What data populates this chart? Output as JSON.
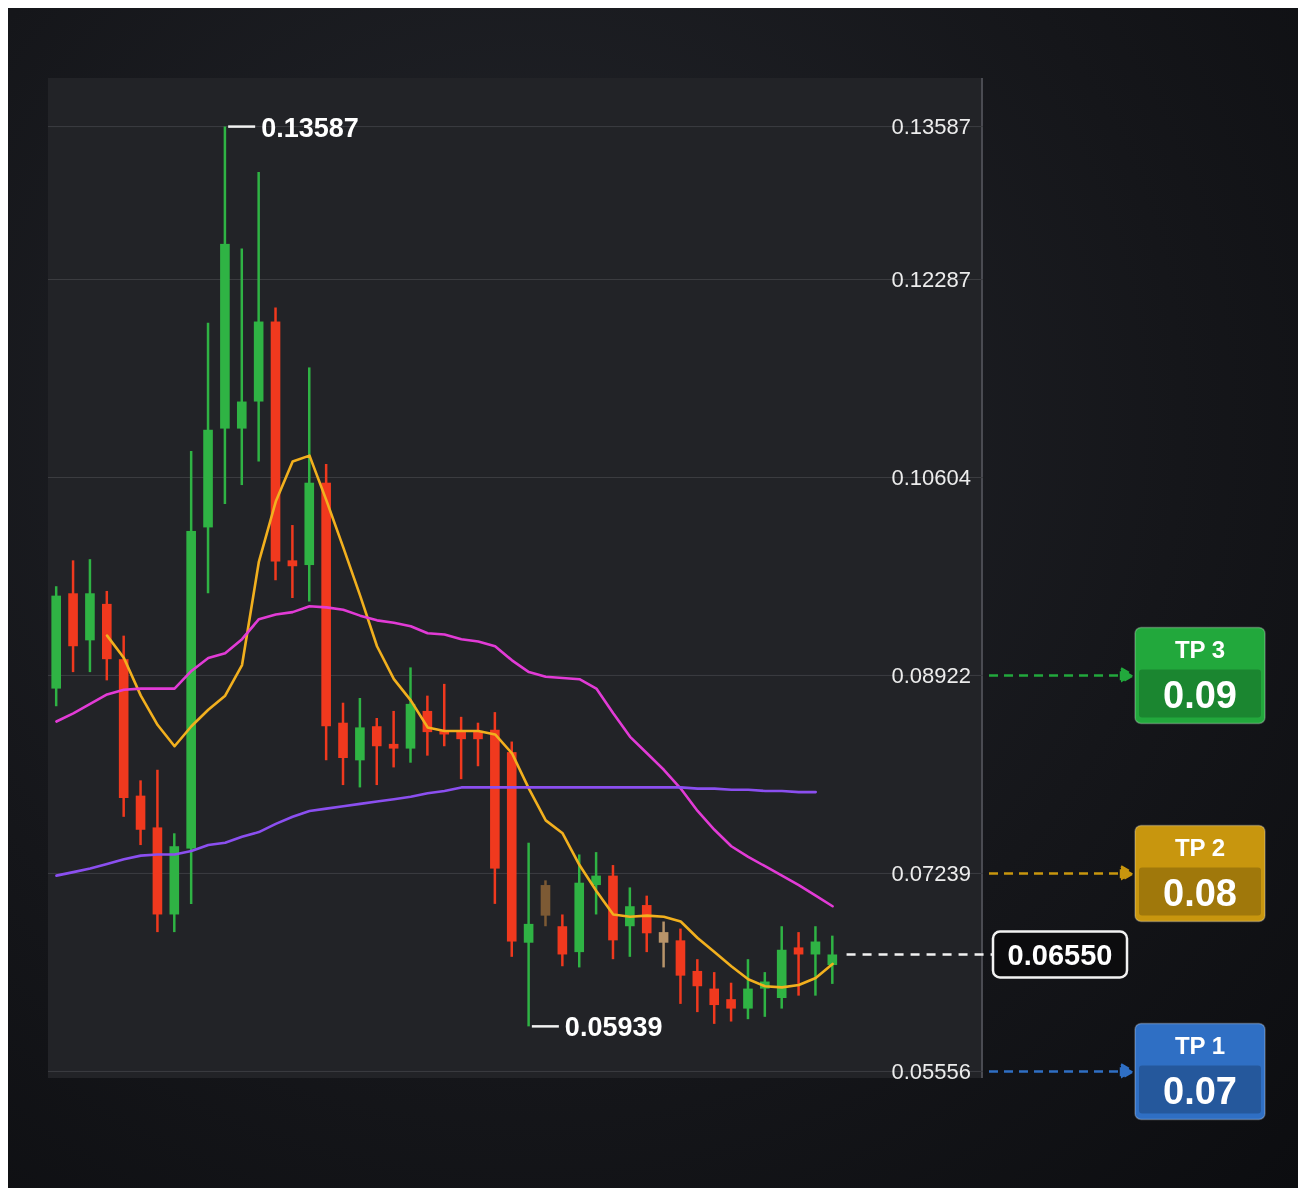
{
  "chart_data": {
    "type": "candlestick",
    "categories": [
      null,
      null,
      null,
      null,
      null,
      null,
      null,
      null,
      null,
      null,
      null,
      null,
      null,
      null,
      null,
      null,
      null,
      null,
      null,
      null,
      null,
      null,
      null,
      null,
      null,
      null,
      null,
      null,
      null,
      null,
      null,
      null,
      null,
      null,
      null,
      null,
      null,
      null,
      null,
      null,
      null,
      null,
      null,
      null,
      null,
      null,
      null
    ],
    "ohlc": [
      [
        0.0881,
        0.0968,
        0.0866,
        0.096
      ],
      [
        0.0962,
        0.099,
        0.0895,
        0.0917
      ],
      [
        0.0922,
        0.0991,
        0.0895,
        0.0962
      ],
      [
        0.0953,
        0.0964,
        0.0888,
        0.0906
      ],
      [
        0.0906,
        0.0926,
        0.0772,
        0.0788
      ],
      [
        0.079,
        0.0803,
        0.0748,
        0.0761
      ],
      [
        0.0763,
        0.0812,
        0.0674,
        0.0689
      ],
      [
        0.0689,
        0.0758,
        0.0674,
        0.0747
      ],
      [
        0.0745,
        0.1083,
        0.0698,
        0.1015
      ],
      [
        0.1018,
        0.1192,
        0.0962,
        0.1101
      ],
      [
        0.1102,
        0.13587,
        0.1038,
        0.1259
      ],
      [
        0.1102,
        0.1255,
        0.1054,
        0.1125
      ],
      [
        0.1125,
        0.132,
        0.1074,
        0.1193
      ],
      [
        0.1193,
        0.1205,
        0.0973,
        0.0989
      ],
      [
        0.099,
        0.102,
        0.0958,
        0.0985
      ],
      [
        0.0986,
        0.1154,
        0.0955,
        0.1056
      ],
      [
        0.1056,
        0.1072,
        0.082,
        0.0849
      ],
      [
        0.0852,
        0.0869,
        0.0799,
        0.0822
      ],
      [
        0.082,
        0.0873,
        0.0797,
        0.0848
      ],
      [
        0.0849,
        0.0856,
        0.0799,
        0.0832
      ],
      [
        0.0834,
        0.0862,
        0.0814,
        0.083
      ],
      [
        0.083,
        0.0899,
        0.0818,
        0.0868
      ],
      [
        0.0862,
        0.0875,
        0.0824,
        0.0844
      ],
      [
        0.0845,
        0.0885,
        0.0832,
        0.0842
      ],
      [
        0.0845,
        0.0857,
        0.0804,
        0.0838
      ],
      [
        0.0845,
        0.0852,
        0.0815,
        0.0838
      ],
      [
        0.0846,
        0.0861,
        0.0698,
        0.0728
      ],
      [
        0.0827,
        0.0836,
        0.0653,
        0.0666
      ],
      [
        0.0665,
        0.075,
        0.05939,
        0.0681
      ],
      [
        0.0714,
        0.0718,
        0.0679,
        0.0688
      ],
      [
        0.0679,
        0.0689,
        0.0645,
        0.0655
      ],
      [
        0.0657,
        0.074,
        0.0644,
        0.0716
      ],
      [
        0.0714,
        0.0742,
        0.0689,
        0.0722
      ],
      [
        0.0722,
        0.0731,
        0.0651,
        0.0667
      ],
      [
        0.0679,
        0.0712,
        0.0653,
        0.0696
      ],
      [
        0.0697,
        0.0705,
        0.0657,
        0.0673
      ],
      [
        0.0674,
        0.0683,
        0.0644,
        0.0665
      ],
      [
        0.0667,
        0.0677,
        0.0613,
        0.0637
      ],
      [
        0.0641,
        0.0651,
        0.0606,
        0.0628
      ],
      [
        0.0626,
        0.064,
        0.0596,
        0.0612
      ],
      [
        0.0617,
        0.0631,
        0.0598,
        0.0609
      ],
      [
        0.0609,
        0.0651,
        0.06,
        0.0626
      ],
      [
        0.0626,
        0.064,
        0.0602,
        0.0632
      ],
      [
        0.0618,
        0.0679,
        0.0609,
        0.0659
      ],
      [
        0.0661,
        0.0674,
        0.062,
        0.0655
      ],
      [
        0.0655,
        0.0679,
        0.062,
        0.0666
      ],
      [
        0.0646,
        0.0671,
        0.063,
        0.0655
      ]
    ],
    "colors": [
      "#2fb344",
      "#f0391e",
      "#2fb344",
      "#f0391e",
      "#f0391e",
      "#f0391e",
      "#f0391e",
      "#2fb344",
      "#2fb344",
      "#2fb344",
      "#2fb344",
      "#2fb344",
      "#2fb344",
      "#f0391e",
      "#f0391e",
      "#2fb344",
      "#f0391e",
      "#f0391e",
      "#2fb344",
      "#f0391e",
      "#f0391e",
      "#2fb344",
      "#f0391e",
      "#f0391e",
      "#f0391e",
      "#f0391e",
      "#f0391e",
      "#f0391e",
      "#2fb344",
      "#7d5a34",
      "#f0391e",
      "#2fb344",
      "#2fb344",
      "#f0391e",
      "#2fb344",
      "#f0391e",
      "#b8946a",
      "#f0391e",
      "#f0391e",
      "#f0391e",
      "#f0391e",
      "#2fb344",
      "#2fb344",
      "#2fb344",
      "#f0391e",
      "#2fb344",
      "#2fb344"
    ],
    "series": [
      {
        "type": "line",
        "color": "#f2b01e",
        "values": [
          null,
          null,
          null,
          0.0926,
          0.0907,
          0.0875,
          0.085,
          0.0832,
          0.0849,
          0.0863,
          0.0875,
          0.0901,
          0.0989,
          0.104,
          0.1074,
          0.1079,
          0.1041,
          0.1001,
          0.096,
          0.0917,
          0.0889,
          0.0871,
          0.0848,
          0.0845,
          0.0845,
          0.0845,
          0.0842,
          0.0826,
          0.0796,
          0.0769,
          0.0758,
          0.0731,
          0.0709,
          0.0689,
          0.0687,
          0.0688,
          0.0687,
          0.0683,
          0.0669,
          0.0657,
          0.0645,
          0.0634,
          0.0628,
          0.0627,
          0.0629,
          0.0635,
          0.0647
        ]
      },
      {
        "type": "line",
        "color": "#e23bd6",
        "values": [
          0.0853,
          0.086,
          0.0868,
          0.0876,
          0.088,
          0.0881,
          0.0881,
          0.0881,
          0.0896,
          0.0907,
          0.0911,
          0.0923,
          0.094,
          0.0944,
          0.0946,
          0.0951,
          0.095,
          0.0948,
          0.0943,
          0.0939,
          0.0937,
          0.0934,
          0.0928,
          0.0927,
          0.0923,
          0.0921,
          0.0917,
          0.0905,
          0.0895,
          0.0891,
          0.089,
          0.0889,
          0.0881,
          0.086,
          0.084,
          0.0826,
          0.0812,
          0.0796,
          0.0777,
          0.0761,
          0.0747,
          0.0738,
          0.073,
          0.0722,
          0.0714,
          0.0705,
          0.0696
        ]
      },
      {
        "type": "line",
        "color": "#8b4ff0",
        "values": [
          0.0722,
          0.0725,
          0.0728,
          0.0732,
          0.0736,
          0.0739,
          0.074,
          0.074,
          0.0743,
          0.0748,
          0.075,
          0.0755,
          0.0759,
          0.0766,
          0.0772,
          0.0777,
          0.0779,
          0.0781,
          0.0783,
          0.0785,
          0.0787,
          0.0789,
          0.0792,
          0.0794,
          0.0797,
          0.0797,
          0.0797,
          0.0797,
          0.0797,
          0.0797,
          0.0797,
          0.0797,
          0.0797,
          0.0797,
          0.0797,
          0.0797,
          0.0797,
          0.0797,
          0.0796,
          0.0796,
          0.0795,
          0.0795,
          0.0794,
          0.0794,
          0.0793,
          0.0793,
          null
        ]
      }
    ],
    "ylim": [
      0.055,
      0.14
    ],
    "yticks": [
      0.05556,
      0.07239,
      0.08922,
      0.10604,
      0.12287,
      0.13587
    ],
    "grid": "y",
    "annotations": [
      "0.13587",
      "0.05939",
      "0.06550",
      "TP 3",
      "0.09",
      "TP 2",
      "0.08",
      "TP 1",
      "0.07"
    ]
  }
}
